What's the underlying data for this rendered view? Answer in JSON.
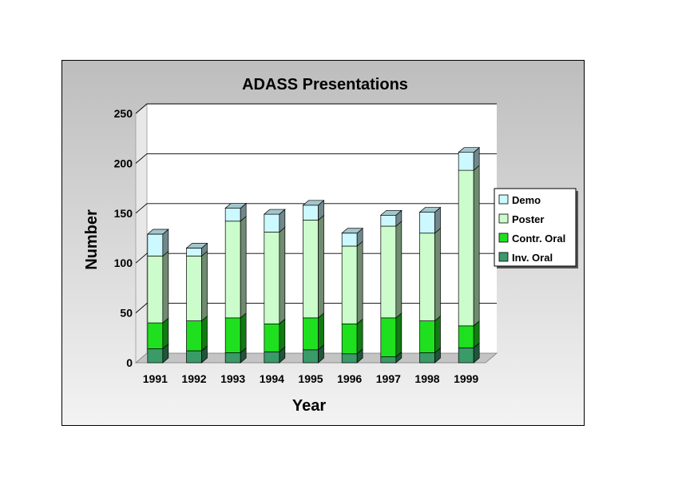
{
  "chart_data": {
    "type": "bar",
    "stacked": true,
    "three_d": true,
    "title": "ADASS Presentations",
    "xlabel": "Year",
    "ylabel": "Number",
    "ylim": [
      0,
      250
    ],
    "yticks": [
      0,
      50,
      100,
      150,
      200,
      250
    ],
    "grid": true,
    "legend_position": "right",
    "categories": [
      "1991",
      "1992",
      "1993",
      "1994",
      "1995",
      "1996",
      "1997",
      "1998",
      "1999"
    ],
    "series": [
      {
        "name": "Inv. Oral",
        "color": "#3a9a68",
        "values": [
          14,
          12,
          10,
          11,
          13,
          9,
          6,
          10,
          15
        ]
      },
      {
        "name": "Contr. Oral",
        "color": "#1fe01f",
        "values": [
          26,
          30,
          35,
          28,
          32,
          30,
          39,
          32,
          22
        ]
      },
      {
        "name": "Poster",
        "color": "#ccfccc",
        "values": [
          67,
          65,
          97,
          92,
          98,
          78,
          92,
          88,
          156
        ]
      },
      {
        "name": "Demo",
        "color": "#ccf8ff",
        "values": [
          22,
          8,
          13,
          18,
          15,
          13,
          11,
          21,
          18
        ]
      }
    ]
  }
}
